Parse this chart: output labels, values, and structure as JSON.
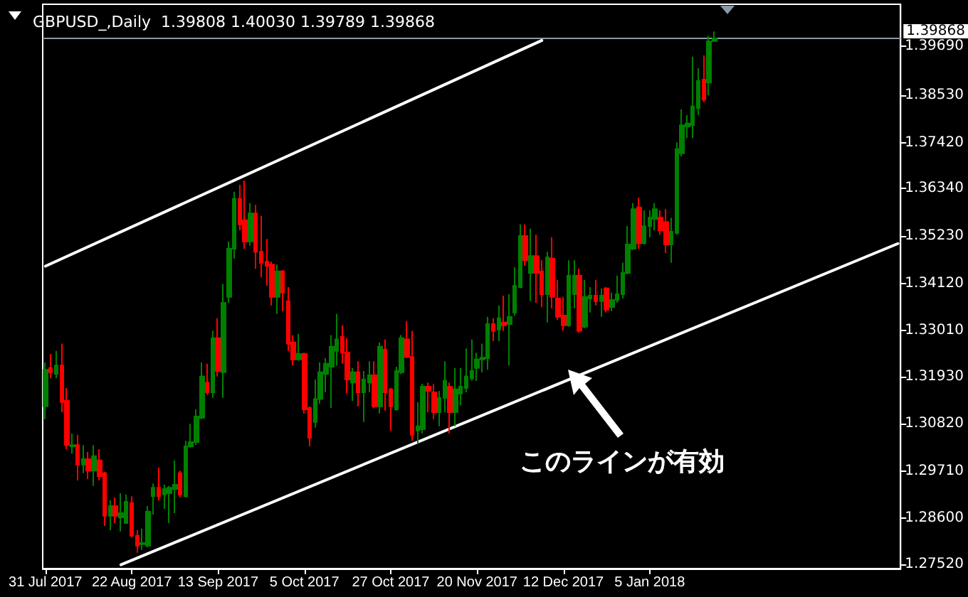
{
  "chart_data": {
    "type": "candlestick",
    "title": "GBPUSD_,Daily  1.39808 1.40030 1.39789 1.39868",
    "annotations": [
      "このラインが有効"
    ],
    "categories": [
      "31 Jul 2017",
      null,
      null,
      null,
      null,
      null,
      null,
      null,
      null,
      null,
      null,
      null,
      null,
      null,
      null,
      null,
      "22 Aug 2017",
      null,
      null,
      null,
      null,
      null,
      null,
      null,
      null,
      null,
      null,
      null,
      null,
      null,
      null,
      null,
      "13 Sep 2017",
      null,
      null,
      null,
      null,
      null,
      null,
      null,
      null,
      null,
      null,
      null,
      null,
      null,
      null,
      null,
      "5 Oct 2017",
      null,
      null,
      null,
      null,
      null,
      null,
      null,
      null,
      null,
      null,
      null,
      null,
      null,
      null,
      null,
      "27 Oct 2017",
      null,
      null,
      null,
      null,
      null,
      null,
      null,
      null,
      null,
      null,
      null,
      null,
      null,
      null,
      null,
      "20 Nov 2017",
      null,
      null,
      null,
      null,
      null,
      null,
      null,
      null,
      null,
      null,
      null,
      null,
      null,
      null,
      null,
      "12 Dec 2017",
      null,
      null,
      null,
      null,
      null,
      null,
      null,
      null,
      null,
      null,
      null,
      null,
      null,
      null,
      null,
      "5 Jan 2018",
      null,
      null,
      null,
      null,
      null,
      null,
      null,
      null,
      null,
      null,
      null,
      null,
      null,
      null,
      null,
      null,
      null,
      null,
      null,
      null,
      null,
      null,
      null,
      null,
      null,
      null,
      null,
      null,
      null,
      null,
      null,
      null,
      null,
      null,
      null,
      null,
      null,
      null,
      null,
      null,
      null,
      null,
      null,
      null,
      null,
      null
    ],
    "ohlc": [
      [
        1.3123,
        1.3226,
        1.3093,
        1.3209
      ],
      [
        1.3213,
        1.3246,
        1.3189,
        1.3203
      ],
      [
        1.3199,
        1.3253,
        1.3189,
        1.3219
      ],
      [
        1.3219,
        1.327,
        1.3109,
        1.3133
      ],
      [
        1.3136,
        1.3166,
        1.3022,
        1.3032
      ],
      [
        1.3029,
        1.3059,
        1.3012,
        1.3032
      ],
      [
        1.3032,
        1.3056,
        1.2949,
        1.2986
      ],
      [
        1.2986,
        1.3032,
        1.2966,
        1.2999
      ],
      [
        1.2999,
        1.3016,
        1.2952,
        1.2972
      ],
      [
        1.2972,
        1.3032,
        1.2936,
        1.3006
      ],
      [
        1.2996,
        1.3022,
        1.2949,
        1.2959
      ],
      [
        1.2966,
        1.2969,
        1.2842,
        1.2866
      ],
      [
        1.2866,
        1.2902,
        1.2832,
        1.2889
      ],
      [
        1.2889,
        1.2909,
        1.2849,
        1.2866
      ],
      [
        1.2862,
        1.2919,
        1.2829,
        1.2872
      ],
      [
        1.2849,
        1.2916,
        1.2849,
        1.2899
      ],
      [
        1.2896,
        1.2912,
        1.2815,
        1.2819
      ],
      [
        1.2819,
        1.2832,
        1.2779,
        1.2796
      ],
      [
        1.2799,
        1.2836,
        1.2786,
        1.2802
      ],
      [
        1.2796,
        1.2889,
        1.2792,
        1.2876
      ],
      [
        1.2912,
        1.2942,
        1.2869,
        1.2932
      ],
      [
        1.2932,
        1.2979,
        1.2902,
        1.2912
      ],
      [
        1.2916,
        1.2939,
        1.2882,
        1.2929
      ],
      [
        1.2919,
        1.2936,
        1.2849,
        1.2932
      ],
      [
        1.2929,
        1.2996,
        1.2872,
        1.2939
      ],
      [
        1.2966,
        1.2972,
        1.2909,
        1.2916
      ],
      [
        1.2912,
        1.3042,
        1.2909,
        1.3029
      ],
      [
        1.3029,
        1.3082,
        1.3026,
        1.3039
      ],
      [
        1.3039,
        1.3116,
        1.3032,
        1.3099
      ],
      [
        1.3096,
        1.3226,
        1.3093,
        1.3193
      ],
      [
        1.3179,
        1.3223,
        1.315,
        1.3156
      ],
      [
        1.3156,
        1.33,
        1.3143,
        1.3283
      ],
      [
        1.3283,
        1.333,
        1.3193,
        1.3206
      ],
      [
        1.3203,
        1.341,
        1.3143,
        1.3366
      ],
      [
        1.338,
        1.351,
        1.3366,
        1.3493
      ],
      [
        1.3493,
        1.3627,
        1.347,
        1.361
      ],
      [
        1.361,
        1.3643,
        1.3536,
        1.355
      ],
      [
        1.356,
        1.3653,
        1.3493,
        1.351
      ],
      [
        1.351,
        1.36,
        1.35,
        1.3576
      ],
      [
        1.3576,
        1.3596,
        1.3446,
        1.3486
      ],
      [
        1.3486,
        1.357,
        1.3426,
        1.346
      ],
      [
        1.3463,
        1.3516,
        1.3406,
        1.3453
      ],
      [
        1.3456,
        1.3463,
        1.336,
        1.338
      ],
      [
        1.338,
        1.3456,
        1.334,
        1.344
      ],
      [
        1.344,
        1.3443,
        1.3346,
        1.339
      ],
      [
        1.337,
        1.3403,
        1.3253,
        1.327
      ],
      [
        1.3273,
        1.329,
        1.3219,
        1.3233
      ],
      [
        1.3233,
        1.3293,
        1.323,
        1.3246
      ],
      [
        1.3246,
        1.3249,
        1.3106,
        1.3116
      ],
      [
        1.3119,
        1.3123,
        1.3029,
        1.3049
      ],
      [
        1.3086,
        1.3186,
        1.3073,
        1.314
      ],
      [
        1.314,
        1.3226,
        1.3129,
        1.3203
      ],
      [
        1.3199,
        1.3236,
        1.3156,
        1.3223
      ],
      [
        1.3216,
        1.329,
        1.3119,
        1.3263
      ],
      [
        1.3253,
        1.334,
        1.3219,
        1.328
      ],
      [
        1.3286,
        1.3313,
        1.3223,
        1.3249
      ],
      [
        1.3249,
        1.3283,
        1.3153,
        1.3186
      ],
      [
        1.3179,
        1.3213,
        1.3136,
        1.3203
      ],
      [
        1.3203,
        1.3229,
        1.3123,
        1.3156
      ],
      [
        1.3156,
        1.3206,
        1.3086,
        1.3186
      ],
      [
        1.3179,
        1.3229,
        1.3156,
        1.3196
      ],
      [
        1.3196,
        1.3229,
        1.3119,
        1.3123
      ],
      [
        1.3123,
        1.3273,
        1.3106,
        1.3263
      ],
      [
        1.3256,
        1.328,
        1.3113,
        1.3156
      ],
      [
        1.3163,
        1.3166,
        1.3066,
        1.3123
      ],
      [
        1.3116,
        1.3216,
        1.3113,
        1.3206
      ],
      [
        1.3203,
        1.329,
        1.3199,
        1.3283
      ],
      [
        1.328,
        1.3323,
        1.3236,
        1.3239
      ],
      [
        1.3239,
        1.33,
        1.3042,
        1.3056
      ],
      [
        1.3066,
        1.3133,
        1.3036,
        1.3076
      ],
      [
        1.3069,
        1.3176,
        1.3059,
        1.3169
      ],
      [
        1.3169,
        1.3179,
        1.3109,
        1.3159
      ],
      [
        1.3156,
        1.3176,
        1.3093,
        1.3109
      ],
      [
        1.3109,
        1.3159,
        1.3076,
        1.3143
      ],
      [
        1.3143,
        1.3229,
        1.3109,
        1.3183
      ],
      [
        1.3169,
        1.3179,
        1.3059,
        1.3109
      ],
      [
        1.3109,
        1.3213,
        1.3076,
        1.3163
      ],
      [
        1.3153,
        1.3213,
        1.3126,
        1.3169
      ],
      [
        1.3166,
        1.3259,
        1.3156,
        1.3193
      ],
      [
        1.3189,
        1.328,
        1.3183,
        1.3206
      ],
      [
        1.3213,
        1.3249,
        1.3183,
        1.3233
      ],
      [
        1.3233,
        1.327,
        1.3203,
        1.3237
      ],
      [
        1.3236,
        1.3333,
        1.3209,
        1.3316
      ],
      [
        1.3316,
        1.333,
        1.3276,
        1.33
      ],
      [
        1.3303,
        1.336,
        1.3276,
        1.333
      ],
      [
        1.332,
        1.3383,
        1.33,
        1.3313
      ],
      [
        1.3316,
        1.3386,
        1.3219,
        1.3333
      ],
      [
        1.3343,
        1.345,
        1.3336,
        1.3406
      ],
      [
        1.3403,
        1.355,
        1.34,
        1.3523
      ],
      [
        1.3523,
        1.355,
        1.3453,
        1.3466
      ],
      [
        1.3436,
        1.354,
        1.337,
        1.3476
      ],
      [
        1.3476,
        1.3526,
        1.3366,
        1.3436
      ],
      [
        1.344,
        1.3466,
        1.3356,
        1.3386
      ],
      [
        1.3386,
        1.3486,
        1.332,
        1.3473
      ],
      [
        1.347,
        1.352,
        1.3353,
        1.338
      ],
      [
        1.3376,
        1.342,
        1.3326,
        1.3333
      ],
      [
        1.3336,
        1.338,
        1.33,
        1.3313
      ],
      [
        1.3313,
        1.3466,
        1.331,
        1.343
      ],
      [
        1.3386,
        1.3466,
        1.3353,
        1.343
      ],
      [
        1.343,
        1.3446,
        1.3296,
        1.33
      ],
      [
        1.331,
        1.342,
        1.3306,
        1.338
      ],
      [
        1.3376,
        1.3403,
        1.3343,
        1.3383
      ],
      [
        1.3383,
        1.342,
        1.336,
        1.337
      ],
      [
        1.337,
        1.34,
        1.3333,
        1.3383
      ],
      [
        1.34,
        1.3403,
        1.3343,
        1.335
      ],
      [
        1.3356,
        1.339,
        1.3346,
        1.3373
      ],
      [
        1.3373,
        1.343,
        1.3366,
        1.3386
      ],
      [
        1.3386,
        1.346,
        1.3376,
        1.3436
      ],
      [
        1.3436,
        1.3546,
        1.3433,
        1.3503
      ],
      [
        1.3493,
        1.36,
        1.349,
        1.3586
      ],
      [
        1.359,
        1.3613,
        1.3493,
        1.3506
      ],
      [
        1.3506,
        1.3583,
        1.3503,
        1.3546
      ],
      [
        1.3546,
        1.3583,
        1.352,
        1.3566
      ],
      [
        1.3563,
        1.36,
        1.3536,
        1.3586
      ],
      [
        1.3566,
        1.3583,
        1.3526,
        1.3536
      ],
      [
        1.3556,
        1.3586,
        1.3483,
        1.3503
      ],
      [
        1.3503,
        1.3566,
        1.346,
        1.3533
      ],
      [
        1.353,
        1.3743,
        1.3526,
        1.3727
      ],
      [
        1.3717,
        1.382,
        1.371,
        1.3783
      ],
      [
        1.378,
        1.3807,
        1.3753,
        1.3787
      ],
      [
        1.3783,
        1.3944,
        1.3753,
        1.3827
      ],
      [
        1.3823,
        1.3917,
        1.3807,
        1.3887
      ],
      [
        1.389,
        1.3947,
        1.3837,
        1.3843
      ],
      [
        1.3883,
        1.3993,
        1.3853,
        1.398
      ],
      [
        1.39808,
        1.4003,
        1.39789,
        1.39868
      ],
      null,
      null,
      null,
      null,
      null,
      null,
      null,
      null,
      null,
      null,
      null,
      null,
      null,
      null,
      null,
      null,
      null,
      null,
      null,
      null,
      null,
      null,
      null,
      null,
      null,
      null,
      null,
      null,
      null,
      null,
      null,
      null,
      null,
      null
    ],
    "colors": [
      "#008000",
      "#ff0000",
      "#008000",
      "#ff0000",
      "#ff0000",
      "#008000",
      "#ff0000",
      "#008000",
      "#ff0000",
      "#008000",
      "#ff0000",
      "#ff0000",
      "#008000",
      "#ff0000",
      "#008000",
      "#008000",
      "#ff0000",
      "#ff0000",
      "#008000",
      "#008000",
      "#008000",
      "#ff0000",
      "#008000",
      "#008000",
      "#008000",
      "#ff0000",
      "#008000",
      "#008000",
      "#008000",
      "#008000",
      "#ff0000",
      "#008000",
      "#ff0000",
      "#008000",
      "#008000",
      "#008000",
      "#ff0000",
      "#ff0000",
      "#008000",
      "#ff0000",
      "#ff0000",
      "#ff0000",
      "#ff0000",
      "#008000",
      "#ff0000",
      "#ff0000",
      "#ff0000",
      "#008000",
      "#ff0000",
      "#ff0000",
      "#008000",
      "#008000",
      "#008000",
      "#008000",
      "#008000",
      "#ff0000",
      "#ff0000",
      "#008000",
      "#ff0000",
      "#008000",
      "#008000",
      "#ff0000",
      "#008000",
      "#ff0000",
      "#ff0000",
      "#008000",
      "#008000",
      "#ff0000",
      "#ff0000",
      "#008000",
      "#008000",
      "#ff0000",
      "#ff0000",
      "#008000",
      "#008000",
      "#ff0000",
      "#008000",
      "#008000",
      "#008000",
      "#008000",
      "#008000",
      "#008000",
      "#008000",
      "#ff0000",
      "#008000",
      "#ff0000",
      "#008000",
      "#008000",
      "#008000",
      "#ff0000",
      "#008000",
      "#ff0000",
      "#ff0000",
      "#008000",
      "#ff0000",
      "#ff0000",
      "#ff0000",
      "#008000",
      "#008000",
      "#ff0000",
      "#008000",
      "#008000",
      "#ff0000",
      "#008000",
      "#ff0000",
      "#008000",
      "#008000",
      "#008000",
      "#008000",
      "#008000",
      "#ff0000",
      "#008000",
      "#008000",
      "#008000",
      "#ff0000",
      "#ff0000",
      "#008000",
      "#008000",
      "#008000",
      "#008000",
      "#008000",
      "#008000",
      "#ff0000",
      "#008000",
      "#008000",
      null,
      null,
      null,
      null,
      null,
      null,
      null,
      null,
      null,
      null,
      null,
      null,
      null,
      null,
      null,
      null,
      null,
      null,
      null,
      null,
      null,
      null,
      null,
      null,
      null,
      null,
      null,
      null,
      null,
      null,
      null,
      null,
      null,
      null
    ],
    "series": [
      {
        "type": "line",
        "color": "#ffffff",
        "values": [
          1.3452,
          null,
          null,
          null,
          null,
          null,
          null,
          null,
          null,
          null,
          null,
          null,
          null,
          null,
          null,
          null,
          null,
          null,
          null,
          null,
          null,
          null,
          null,
          null,
          null,
          null,
          null,
          null,
          null,
          null,
          null,
          null,
          null,
          null,
          null,
          null,
          null,
          null,
          null,
          null,
          null,
          null,
          null,
          null,
          null,
          null,
          null,
          null,
          null,
          null,
          null,
          null,
          null,
          null,
          null,
          null,
          null,
          null,
          null,
          null,
          null,
          null,
          null,
          null,
          null,
          null,
          null,
          null,
          null,
          null,
          null,
          null,
          null,
          null,
          null,
          null,
          null,
          null,
          null,
          null,
          null,
          null,
          null,
          null,
          null,
          null,
          null,
          null,
          null,
          null,
          null,
          null,
          1.3982,
          null,
          null,
          null,
          null,
          null,
          null,
          null,
          null,
          null,
          null,
          null,
          null,
          null,
          null,
          null,
          null,
          null,
          null,
          null,
          null,
          null,
          null,
          null,
          null,
          null,
          null,
          null,
          null,
          null,
          null,
          null,
          null,
          null,
          null,
          null,
          null,
          null,
          null,
          null,
          null,
          null,
          null,
          null,
          null,
          null,
          null,
          null,
          null,
          null,
          null,
          null,
          null,
          null,
          null,
          null,
          null,
          null,
          null,
          null,
          null,
          null,
          null,
          null,
          null,
          null,
          null
        ]
      },
      {
        "type": "line",
        "color": "#ffffff",
        "values": [
          null,
          null,
          null,
          null,
          null,
          null,
          null,
          null,
          null,
          null,
          null,
          null,
          null,
          null,
          1.2751,
          null,
          null,
          null,
          null,
          null,
          null,
          null,
          null,
          null,
          null,
          null,
          null,
          null,
          null,
          null,
          null,
          null,
          null,
          null,
          null,
          null,
          null,
          null,
          null,
          null,
          null,
          null,
          null,
          null,
          null,
          null,
          null,
          null,
          null,
          null,
          null,
          null,
          null,
          null,
          null,
          null,
          null,
          null,
          null,
          null,
          null,
          null,
          null,
          null,
          null,
          null,
          null,
          null,
          null,
          null,
          null,
          null,
          null,
          null,
          null,
          null,
          null,
          null,
          null,
          null,
          null,
          null,
          null,
          null,
          null,
          null,
          null,
          null,
          null,
          null,
          null,
          null,
          null,
          null,
          null,
          null,
          null,
          null,
          null,
          null,
          null,
          null,
          null,
          null,
          null,
          null,
          null,
          null,
          null,
          null,
          null,
          null,
          null,
          null,
          null,
          null,
          null,
          null,
          null,
          null,
          null,
          null,
          null,
          null,
          null,
          null,
          null,
          null,
          null,
          null,
          null,
          null,
          null,
          null,
          null,
          null,
          null,
          null,
          null,
          null,
          null,
          null,
          null,
          null,
          null,
          null,
          null,
          null,
          null,
          null,
          null,
          null,
          null,
          null,
          null,
          null,
          null,
          null,
          1.3505
        ]
      }
    ],
    "ylim": [
      1.2742,
      1.4067
    ],
    "yticks": [
      {
        "value": 1.2752,
        "label": "1.27520"
      },
      {
        "value": 1.286,
        "label": "1.28600"
      },
      {
        "value": 1.2971,
        "label": "1.29710"
      },
      {
        "value": 1.3082,
        "label": "1.30820"
      },
      {
        "value": 1.3193,
        "label": "1.31930"
      },
      {
        "value": 1.3301,
        "label": "1.33010"
      },
      {
        "value": 1.3412,
        "label": "1.34120"
      },
      {
        "value": 1.3523,
        "label": "1.35230"
      },
      {
        "value": 1.3634,
        "label": "1.36340"
      },
      {
        "value": 1.3742,
        "label": "1.37420"
      },
      {
        "value": 1.3853,
        "label": "1.38530"
      },
      {
        "value": 1.3969,
        "label": "1.39690"
      }
    ],
    "ref_lines": [
      {
        "axis": "y",
        "value": 1.39868,
        "label": "1.39868",
        "color": "#8899aa"
      }
    ]
  }
}
